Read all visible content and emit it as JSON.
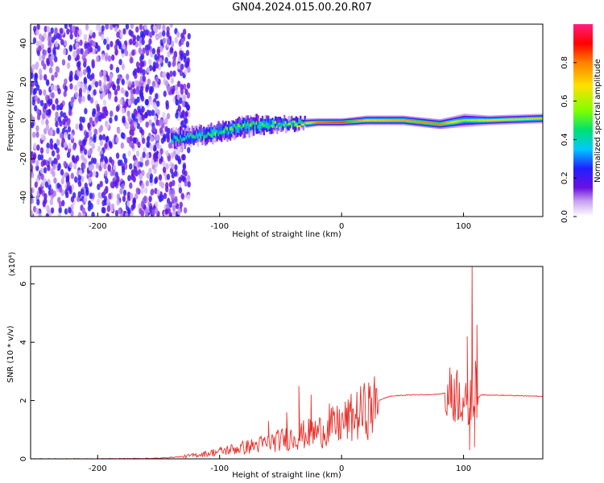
{
  "title": "GN04.2024.015.00.20.R07",
  "colors": {
    "snr_line": "#e8302a",
    "frame": "#000000"
  },
  "chart_data": [
    {
      "type": "heatmap",
      "xlabel": "Height of straight line (km)",
      "ylabel": "Frequency (Hz)",
      "xlim": [
        -255,
        165
      ],
      "ylim": [
        -50,
        50
      ],
      "xticks": [
        -200,
        -100,
        0,
        100
      ],
      "yticks": [
        -40,
        -20,
        0,
        20,
        40
      ],
      "colorbar": {
        "label": "Normalized spectral amplitude",
        "range": [
          0.0,
          1.0
        ],
        "ticks": [
          0.0,
          0.2,
          0.4,
          0.6,
          0.8
        ],
        "tick_labels": [
          "0.0",
          "0.2",
          "0.4",
          "0.6",
          "0.8"
        ],
        "colors": [
          "#ffffff",
          "#c8a0f0",
          "#6a10e0",
          "#2020ff",
          "#00c8ff",
          "#00e070",
          "#80ff00",
          "#ffe000",
          "#ff8000",
          "#ff0000",
          "#ff2080"
        ]
      },
      "signal_track": [
        {
          "x": -140,
          "f": -10,
          "width": 10,
          "amp": 0.35
        },
        {
          "x": -120,
          "f": -8,
          "width": 9,
          "amp": 0.4
        },
        {
          "x": -100,
          "f": -6,
          "width": 9,
          "amp": 0.45
        },
        {
          "x": -80,
          "f": -3,
          "width": 10,
          "amp": 0.45
        },
        {
          "x": -60,
          "f": -2,
          "width": 8,
          "amp": 0.45
        },
        {
          "x": -40,
          "f": -2,
          "width": 6,
          "amp": 0.5
        },
        {
          "x": -20,
          "f": -1,
          "width": 4,
          "amp": 0.8
        },
        {
          "x": 0,
          "f": -1,
          "width": 4,
          "amp": 0.85
        },
        {
          "x": 20,
          "f": 0,
          "width": 5,
          "amp": 0.7
        },
        {
          "x": 50,
          "f": 0,
          "width": 5,
          "amp": 0.75
        },
        {
          "x": 80,
          "f": -2,
          "width": 5,
          "amp": 0.8
        },
        {
          "x": 100,
          "f": 0,
          "width": 7,
          "amp": 0.6
        },
        {
          "x": 120,
          "f": 0,
          "width": 5,
          "amp": 0.7
        },
        {
          "x": 165,
          "f": 1,
          "width": 5,
          "amp": 0.65
        }
      ],
      "noise_region": {
        "x_start": -255,
        "x_end": -135,
        "amp_range": [
          0.05,
          0.3
        ]
      }
    },
    {
      "type": "line",
      "xlabel": "Height of straight line (km)",
      "ylabel": "SNR (10 * v/v)",
      "yscale_label": "(x10⁴)",
      "xlim": [
        -255,
        165
      ],
      "ylim": [
        0,
        6.6
      ],
      "xticks": [
        -200,
        -100,
        0,
        100
      ],
      "yticks": [
        0,
        2,
        4,
        6
      ],
      "series": [
        {
          "x": [
            -255,
            -200,
            -150,
            -130,
            -110,
            -90,
            -70,
            -50,
            -40,
            -30,
            -20,
            -10,
            0,
            10,
            20,
            30,
            40,
            50,
            60,
            70,
            80,
            90,
            95,
            100,
            104,
            106,
            108,
            110,
            112,
            115,
            130,
            150,
            165
          ],
          "y": [
            0,
            0,
            0.02,
            0.08,
            0.2,
            0.35,
            0.5,
            0.7,
            0.8,
            0.9,
            1.0,
            1.15,
            1.3,
            1.55,
            1.8,
            2.0,
            2.15,
            2.18,
            2.2,
            2.2,
            2.22,
            2.3,
            2.4,
            2.2,
            1.6,
            2.6,
            2.0,
            3.5,
            2.1,
            2.2,
            2.18,
            2.16,
            2.14
          ],
          "spikes": [
            {
              "x": -60,
              "y": 1.3
            },
            {
              "x": -45,
              "y": 1.6
            },
            {
              "x": -35,
              "y": 2.5
            },
            {
              "x": -25,
              "y": 2.2
            },
            {
              "x": -10,
              "y": 1.9
            },
            {
              "x": 5,
              "y": 1.6
            },
            {
              "x": 90,
              "y": 2.9
            },
            {
              "x": 103,
              "y": 4.2
            },
            {
              "x": 105,
              "y": 0.3
            },
            {
              "x": 107,
              "y": 6.6
            },
            {
              "x": 109,
              "y": 0.4
            },
            {
              "x": 111,
              "y": 4.6
            }
          ]
        }
      ]
    }
  ]
}
